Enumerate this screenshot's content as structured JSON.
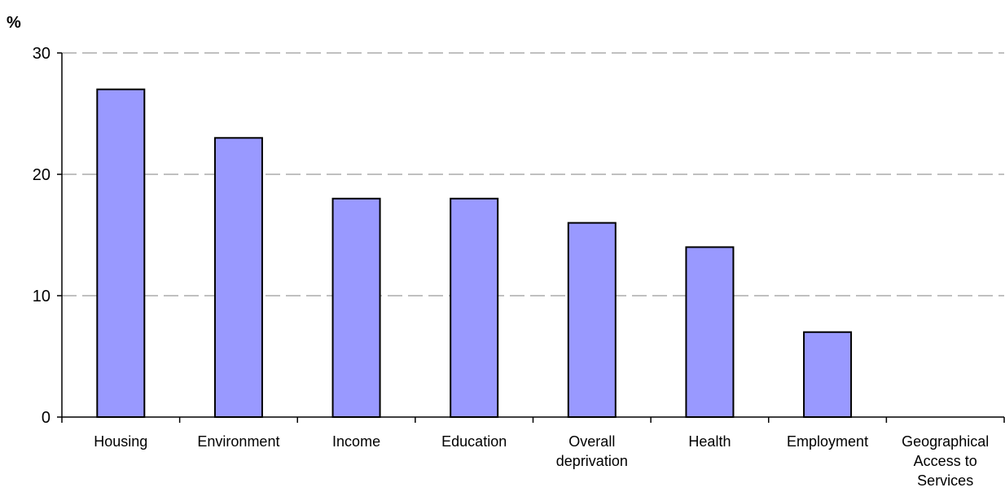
{
  "chart_data": {
    "type": "bar",
    "unit_label": "%",
    "categories": [
      [
        "Housing"
      ],
      [
        "Environment"
      ],
      [
        "Income"
      ],
      [
        "Education"
      ],
      [
        "Overall",
        "deprivation"
      ],
      [
        "Health"
      ],
      [
        "Employment"
      ],
      [
        "Geographical",
        "Access to",
        "Services"
      ]
    ],
    "values": [
      27,
      23,
      18,
      18,
      16,
      14,
      7,
      0
    ],
    "ylim": [
      0,
      30
    ],
    "yticks": [
      0,
      10,
      20,
      30
    ],
    "grid": true,
    "bar_color": "#9999ff",
    "bar_edge_color": "#000000",
    "grid_color": "#808080"
  }
}
